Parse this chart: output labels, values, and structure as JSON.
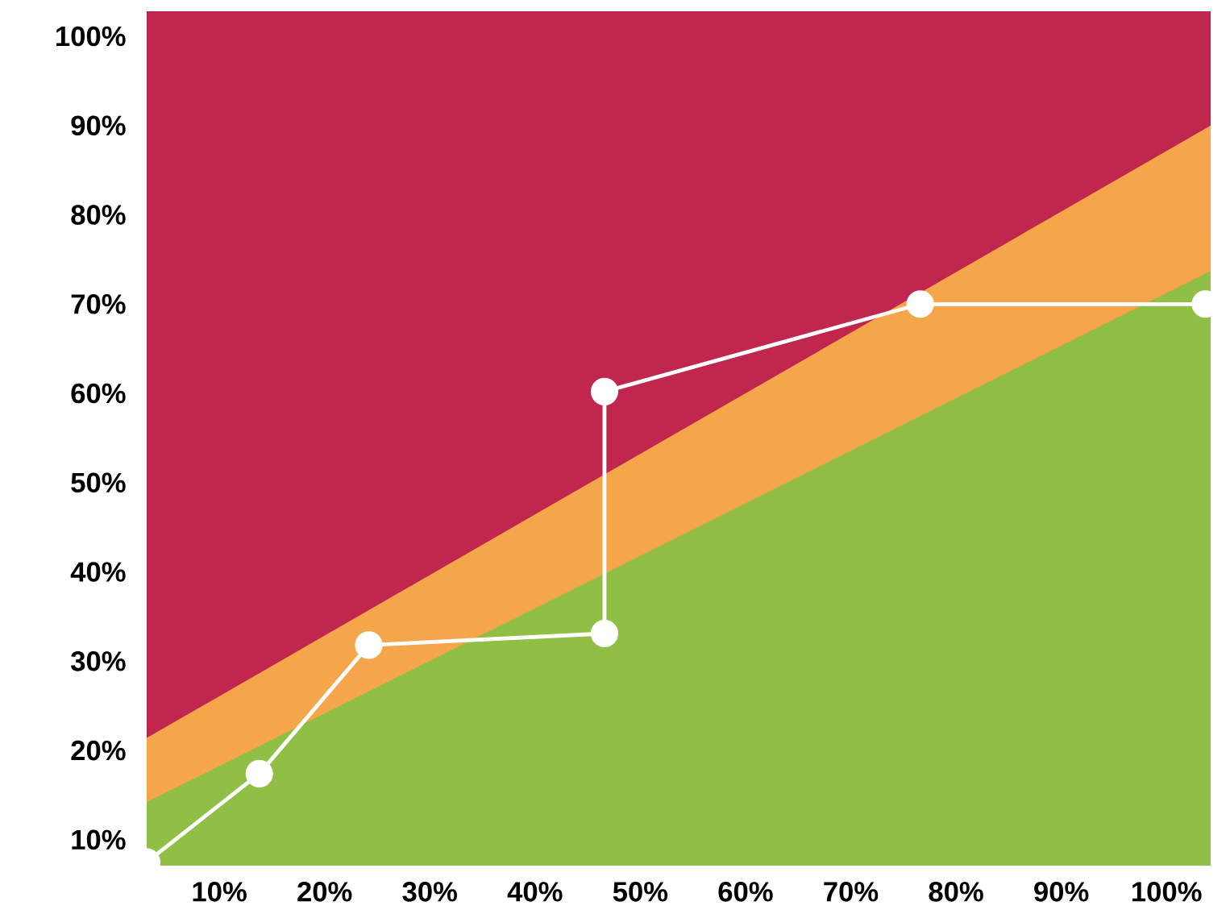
{
  "chart_data": {
    "type": "line",
    "xlim": [
      3.1,
      104.2
    ],
    "ylim": [
      7.1,
      102.8
    ],
    "xticks": [
      {
        "value": 10,
        "label": "10%"
      },
      {
        "value": 20,
        "label": "20%"
      },
      {
        "value": 30,
        "label": "30%"
      },
      {
        "value": 40,
        "label": "40%"
      },
      {
        "value": 50,
        "label": "50%"
      },
      {
        "value": 60,
        "label": "60%"
      },
      {
        "value": 70,
        "label": "70%"
      },
      {
        "value": 80,
        "label": "80%"
      },
      {
        "value": 90,
        "label": "90%"
      },
      {
        "value": 100,
        "label": "100%"
      }
    ],
    "yticks": [
      {
        "value": 10,
        "label": "10%"
      },
      {
        "value": 20,
        "label": "20%"
      },
      {
        "value": 30,
        "label": "30%"
      },
      {
        "value": 40,
        "label": "40%"
      },
      {
        "value": 50,
        "label": "50%"
      },
      {
        "value": 60,
        "label": "60%"
      },
      {
        "value": 70,
        "label": "70%"
      },
      {
        "value": 80,
        "label": "80%"
      },
      {
        "value": 90,
        "label": "90%"
      },
      {
        "value": 100,
        "label": "100%"
      }
    ],
    "line_style": "solid",
    "series": [
      {
        "type": "area",
        "color": "#f5a54a",
        "x": [
          3.1,
          104.2
        ],
        "values": [
          21.4,
          90.0
        ]
      },
      {
        "type": "area",
        "color": "#8fbf45",
        "x": [
          3.1,
          104.2
        ],
        "values": [
          14.2,
          73.7
        ]
      },
      {
        "marker": "circle",
        "color": "#ffffff",
        "x": [
          3.1,
          13.8,
          24.2,
          46.6,
          46.6,
          76.6,
          103.7
        ],
        "values": [
          7.5,
          17.4,
          31.8,
          33.1,
          60.2,
          70.0,
          70.0
        ]
      }
    ]
  }
}
